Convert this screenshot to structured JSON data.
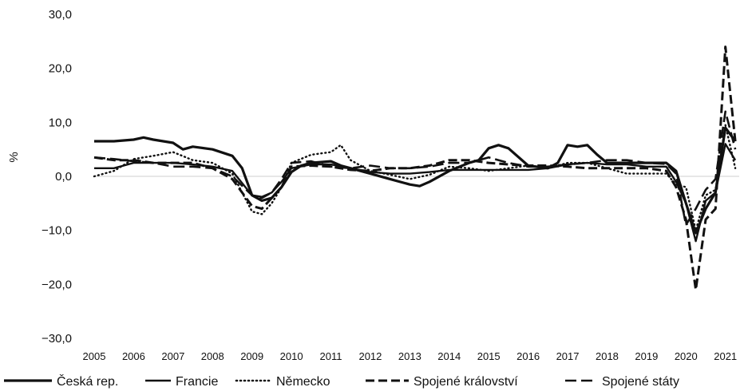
{
  "chart_data": {
    "type": "line",
    "title": "",
    "xlabel": "",
    "ylabel": "%",
    "xlim": [
      2005,
      2021.35
    ],
    "ylim": [
      -30,
      30
    ],
    "x_ticks": [
      "2005",
      "2006",
      "2007",
      "2008",
      "2009",
      "2010",
      "2011",
      "2012",
      "2013",
      "2014",
      "2015",
      "2016",
      "2017",
      "2018",
      "2019",
      "2020",
      "2021"
    ],
    "y_ticks": [
      "30,0",
      "20,0",
      "10,0",
      "0,0",
      "−10,0",
      "−20,0",
      "−30,0"
    ],
    "y_tick_values": [
      30,
      20,
      10,
      0,
      -10,
      -20,
      -30
    ],
    "grid": false,
    "zero_line": true,
    "legend_position": "bottom",
    "series": [
      {
        "name": "Česká rep.",
        "style": "solid-thick",
        "x": [
          2005,
          2005.5,
          2006,
          2006.25,
          2006.5,
          2007,
          2007.25,
          2007.5,
          2008,
          2008.5,
          2008.75,
          2009,
          2009.25,
          2009.5,
          2009.75,
          2010,
          2010.25,
          2010.5,
          2011,
          2011.25,
          2011.5,
          2012,
          2012.5,
          2013,
          2013.25,
          2013.5,
          2014,
          2014.5,
          2014.75,
          2015,
          2015.25,
          2015.5,
          2016,
          2016.5,
          2016.75,
          2017,
          2017.25,
          2017.5,
          2017.75,
          2018,
          2018.5,
          2019,
          2019.5,
          2019.75,
          2020,
          2020.25,
          2020.5,
          2020.75,
          2021,
          2021.25
        ],
        "y": [
          6.5,
          6.5,
          6.8,
          7.2,
          6.8,
          6.2,
          5.0,
          5.5,
          5.0,
          3.8,
          1.5,
          -3.5,
          -4.5,
          -4.0,
          -2.0,
          0.8,
          2.0,
          2.5,
          2.8,
          2.0,
          1.5,
          0.5,
          -0.5,
          -1.5,
          -1.8,
          -1.0,
          1.0,
          2.5,
          3.0,
          5.2,
          5.8,
          5.2,
          2.0,
          1.5,
          2.5,
          5.8,
          5.5,
          5.8,
          4.0,
          2.5,
          2.5,
          2.5,
          2.5,
          1.0,
          -5.0,
          -10.5,
          -6.0,
          -3.0,
          9.0,
          6.5
        ]
      },
      {
        "name": "Francie",
        "style": "solid",
        "x": [
          2005,
          2005.5,
          2006,
          2006.5,
          2007,
          2007.5,
          2008,
          2008.5,
          2009,
          2009.25,
          2009.5,
          2009.75,
          2010,
          2010.5,
          2011,
          2011.5,
          2012,
          2012.5,
          2013,
          2013.5,
          2014,
          2014.5,
          2015,
          2015.5,
          2016,
          2016.5,
          2017,
          2017.5,
          2018,
          2018.5,
          2019,
          2019.5,
          2019.75,
          2020,
          2020.25,
          2020.5,
          2020.75,
          2021,
          2021.25
        ],
        "y": [
          1.5,
          1.5,
          2.5,
          2.5,
          2.5,
          2.2,
          1.8,
          1.0,
          -3.5,
          -3.8,
          -3.0,
          -1.0,
          1.5,
          2.2,
          2.2,
          1.5,
          0.8,
          0.5,
          0.5,
          0.8,
          1.2,
          1.2,
          1.2,
          1.2,
          1.2,
          1.5,
          2.2,
          2.5,
          2.2,
          2.2,
          1.8,
          1.8,
          -1.0,
          -5.0,
          -12.0,
          -4.5,
          -3.0,
          6.0,
          3.0
        ]
      },
      {
        "name": "Německo",
        "style": "dotted",
        "x": [
          2005,
          2005.5,
          2006,
          2006.5,
          2007,
          2007.5,
          2008,
          2008.5,
          2009,
          2009.25,
          2009.5,
          2009.75,
          2010,
          2010.5,
          2011,
          2011.25,
          2011.5,
          2012,
          2012.5,
          2013,
          2013.5,
          2014,
          2014.5,
          2015,
          2015.5,
          2016,
          2016.5,
          2017,
          2017.5,
          2018,
          2018.5,
          2019,
          2019.5,
          2019.75,
          2020,
          2020.25,
          2020.5,
          2020.75,
          2021,
          2021.25
        ],
        "y": [
          0.0,
          1.0,
          3.2,
          3.8,
          4.5,
          3.0,
          2.5,
          0.5,
          -6.5,
          -7.0,
          -5.0,
          -2.0,
          2.5,
          4.0,
          4.5,
          5.8,
          3.0,
          1.0,
          0.3,
          -0.5,
          0.3,
          1.8,
          1.5,
          1.0,
          1.5,
          2.0,
          1.5,
          2.5,
          2.5,
          1.5,
          0.5,
          0.5,
          0.5,
          -1.5,
          -2.0,
          -10.0,
          -3.5,
          -2.5,
          9.5,
          1.5
        ]
      },
      {
        "name": "Spojené království",
        "style": "dashed-long",
        "x": [
          2005,
          2005.5,
          2006,
          2006.5,
          2007,
          2007.5,
          2008,
          2008.5,
          2009,
          2009.25,
          2009.5,
          2009.75,
          2010,
          2010.5,
          2011,
          2011.5,
          2012,
          2012.5,
          2013,
          2013.5,
          2014,
          2014.5,
          2015,
          2015.5,
          2016,
          2016.5,
          2017,
          2017.5,
          2018,
          2018.5,
          2019,
          2019.5,
          2019.75,
          2020,
          2020.25,
          2020.5,
          2020.75,
          2021,
          2021.25
        ],
        "y": [
          3.5,
          3.0,
          3.0,
          2.5,
          2.5,
          2.5,
          1.5,
          -0.5,
          -5.5,
          -6.0,
          -4.0,
          -2.0,
          1.8,
          2.0,
          1.8,
          1.2,
          1.0,
          1.5,
          1.5,
          2.0,
          3.0,
          3.0,
          2.5,
          2.2,
          2.0,
          2.0,
          1.8,
          1.5,
          1.5,
          1.5,
          1.5,
          1.0,
          -2.0,
          -8.0,
          -21.0,
          -8.0,
          -6.0,
          24.0,
          6.5
        ]
      },
      {
        "name": "Spojené státy",
        "style": "dashed-dot",
        "x": [
          2005,
          2005.5,
          2006,
          2006.5,
          2007,
          2007.5,
          2008,
          2008.5,
          2009,
          2009.25,
          2009.5,
          2009.75,
          2010,
          2010.5,
          2011,
          2011.5,
          2012,
          2012.5,
          2013,
          2013.5,
          2014,
          2014.5,
          2015,
          2015.5,
          2016,
          2016.5,
          2017,
          2017.5,
          2018,
          2018.5,
          2019,
          2019.5,
          2019.75,
          2020,
          2020.25,
          2020.5,
          2020.75,
          2021,
          2021.25
        ],
        "y": [
          3.5,
          3.2,
          2.8,
          2.5,
          1.8,
          1.8,
          1.5,
          0.0,
          -3.5,
          -4.0,
          -3.0,
          -0.5,
          2.5,
          2.8,
          1.8,
          1.5,
          2.0,
          1.5,
          1.5,
          1.8,
          2.5,
          2.5,
          3.5,
          2.5,
          1.8,
          1.8,
          2.2,
          2.5,
          3.0,
          3.0,
          2.5,
          2.3,
          0.5,
          -9.0,
          -6.0,
          -2.5,
          -0.5,
          12.0,
          5.0
        ]
      }
    ]
  }
}
